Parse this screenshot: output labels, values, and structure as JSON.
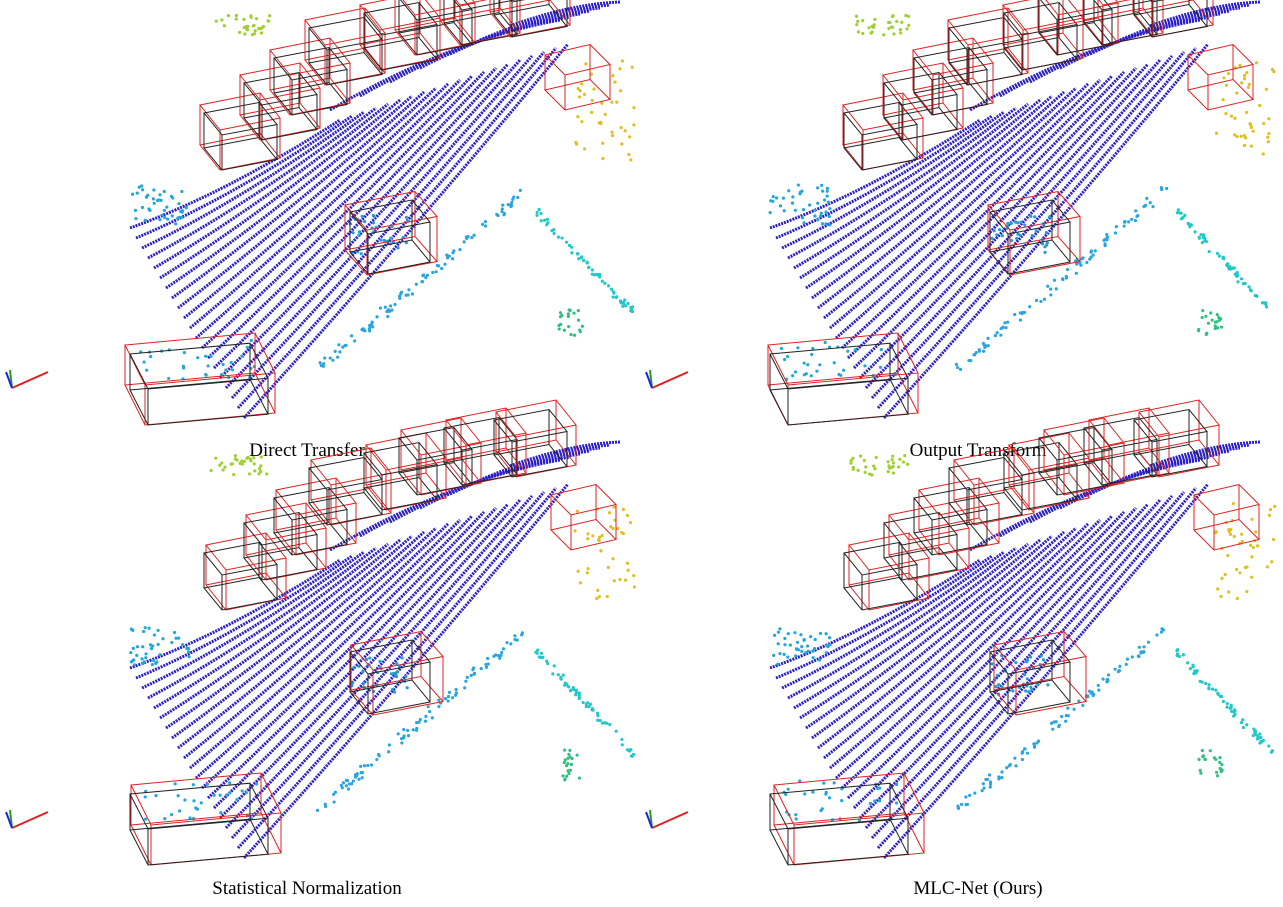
{
  "panels": [
    {
      "caption": "Direct Transfer"
    },
    {
      "caption": "Output Transform"
    },
    {
      "caption": "Statistical Normalization"
    },
    {
      "caption": "MLC-Net (Ours)"
    }
  ]
}
